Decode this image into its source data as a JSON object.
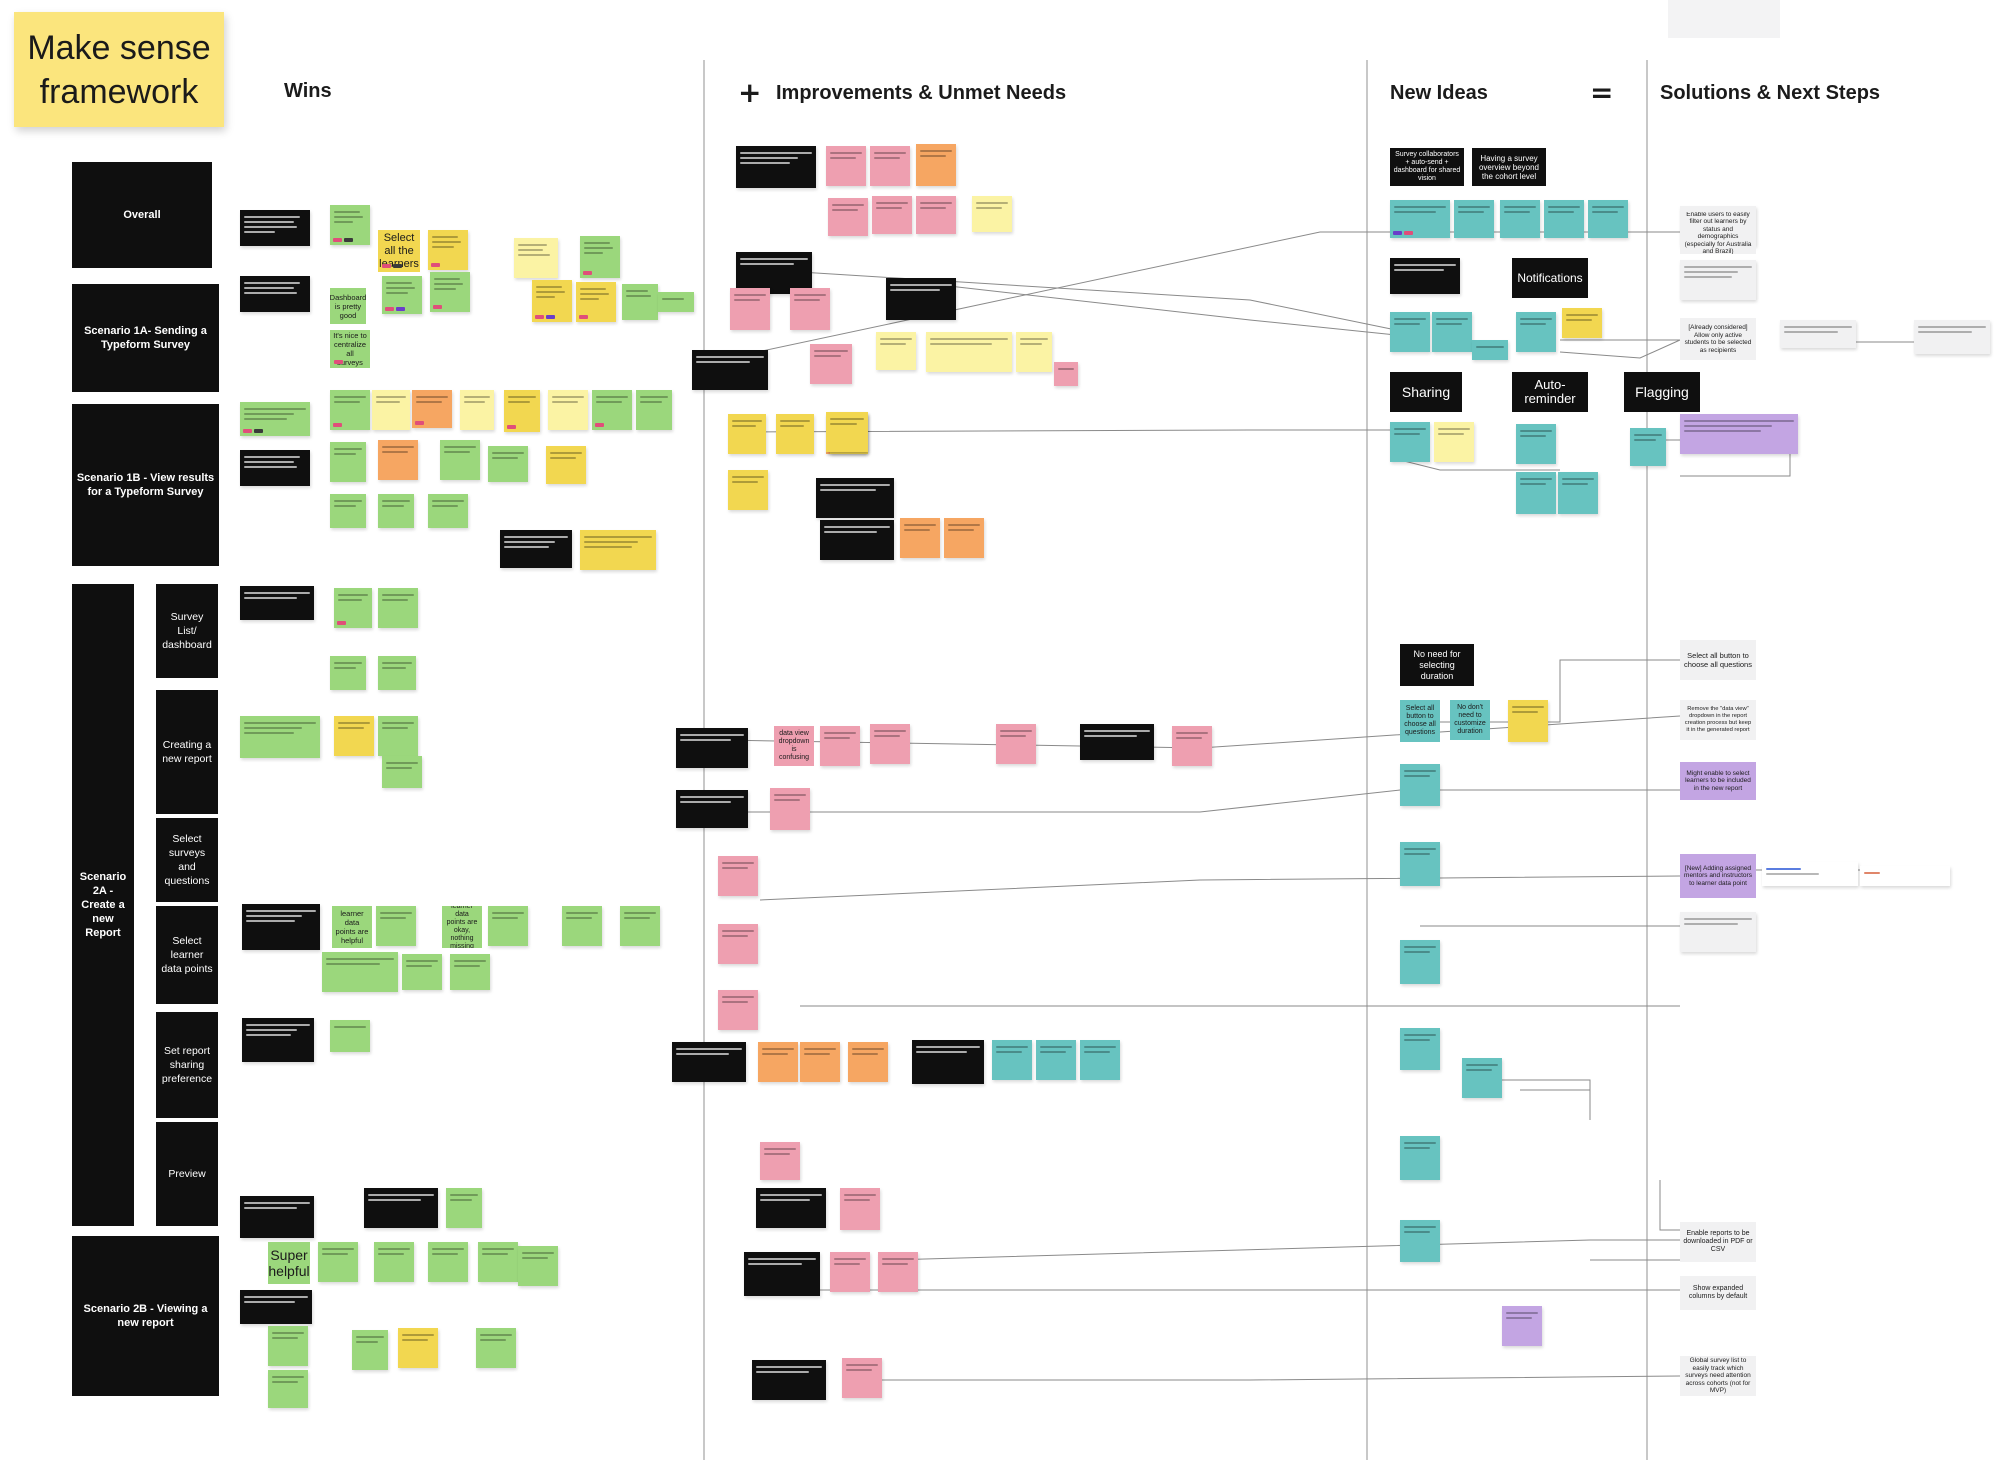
{
  "title": "Make sense\nframework",
  "columns": {
    "wins": "Wins",
    "plus": "+",
    "improvements": "Improvements & Unmet Needs",
    "new_ideas": "New Ideas",
    "equals": "=",
    "solutions": "Solutions & Next Steps"
  },
  "rows": [
    {
      "label": "Overall"
    },
    {
      "label": "Scenario 1A- Sending a Typeform Survey"
    },
    {
      "label": "Scenario 1B - View results for a Typeform Survey"
    },
    {
      "label": "Scenario 2A - Create a new Report"
    },
    {
      "label": "Scenario 2B - Viewing a new report"
    }
  ],
  "subrows": [
    {
      "label": "Survey List/ dashboard"
    },
    {
      "label": "Creating a new report"
    },
    {
      "label": "Select surveys and questions"
    },
    {
      "label": "Select learner data points"
    },
    {
      "label": "Set report sharing preference"
    },
    {
      "label": "Preview"
    }
  ],
  "legible_notes": [
    {
      "id": "select-all-learners",
      "text": "Select all the learners",
      "color": "yellow"
    },
    {
      "id": "dashboard-pretty-good",
      "text": "Dashboard is pretty good",
      "color": "green"
    },
    {
      "id": "nice-centralize",
      "text": "It's nice to centralize all surveys",
      "color": "green"
    },
    {
      "id": "survey-collaborators",
      "text": "Survey collaborators + auto-send + dashboard for shared vision",
      "color": "black"
    },
    {
      "id": "survey-overview",
      "text": "Having a survey overview beyond the cohort level",
      "color": "black"
    },
    {
      "id": "notifications",
      "text": "Notifications",
      "color": "black"
    },
    {
      "id": "sharing",
      "text": "Sharing",
      "color": "black"
    },
    {
      "id": "auto-reminder",
      "text": "Auto-reminder",
      "color": "black"
    },
    {
      "id": "flagging",
      "text": "Flagging",
      "color": "black"
    },
    {
      "id": "no-need-duration",
      "text": "No need for selecting duration",
      "color": "black"
    },
    {
      "id": "select-all-button",
      "text": "Select all button to choose all questions",
      "color": "teal"
    },
    {
      "id": "no-need-customize",
      "text": "No don't need to customize duration",
      "color": "teal"
    },
    {
      "id": "data-view-confusing",
      "text": "data view dropdown is confusing",
      "color": "pink"
    },
    {
      "id": "super-helpful",
      "text": "Super helpful",
      "color": "green"
    },
    {
      "id": "learner-data-helpful",
      "text": "learner data points are helpful",
      "color": "green"
    },
    {
      "id": "learner-data-okay",
      "text": "learner data points are okay, nothing missing",
      "color": "green"
    },
    {
      "id": "sol-select-all",
      "text": "Select all button to choose all questions",
      "color": "gray"
    },
    {
      "id": "sol-remove-data-view",
      "text": "Remove the \"data view\" dropdown in the report creation process but keep it in the generated report",
      "color": "gray"
    },
    {
      "id": "sol-might-select",
      "text": "Might enable to select learners to be included in the new report",
      "color": "purple"
    },
    {
      "id": "sol-adding-mentors",
      "text": "[New] Adding assigned mentors and instructors to learner data point",
      "color": "purple"
    },
    {
      "id": "sol-pdf-csv",
      "text": "Enable reports to be downloaded in PDF or CSV",
      "color": "gray"
    },
    {
      "id": "sol-expanded",
      "text": "Show expanded columns by default",
      "color": "gray"
    },
    {
      "id": "sol-already",
      "text": "[Already considered] Allow only active students to be selected as recipients",
      "color": "gray"
    },
    {
      "id": "sol-filter",
      "text": "Enable users to easily filter out learners by status and demographics (especially for Australia and Brazil)",
      "color": "gray"
    },
    {
      "id": "sol-global",
      "text": "Global survey list to easily track which surveys need attention across cohorts (not for MVP)",
      "color": "gray"
    }
  ],
  "palette": {
    "green": "#9bd77c",
    "yellow": "#f2d750",
    "lightyellow": "#fbf3a4",
    "pink": "#ee9fb0",
    "orange": "#f6a662",
    "teal": "#67c3c0",
    "purple": "#c3a5e3",
    "gray": "#f1f1f2",
    "black": "#0f0f0f"
  }
}
